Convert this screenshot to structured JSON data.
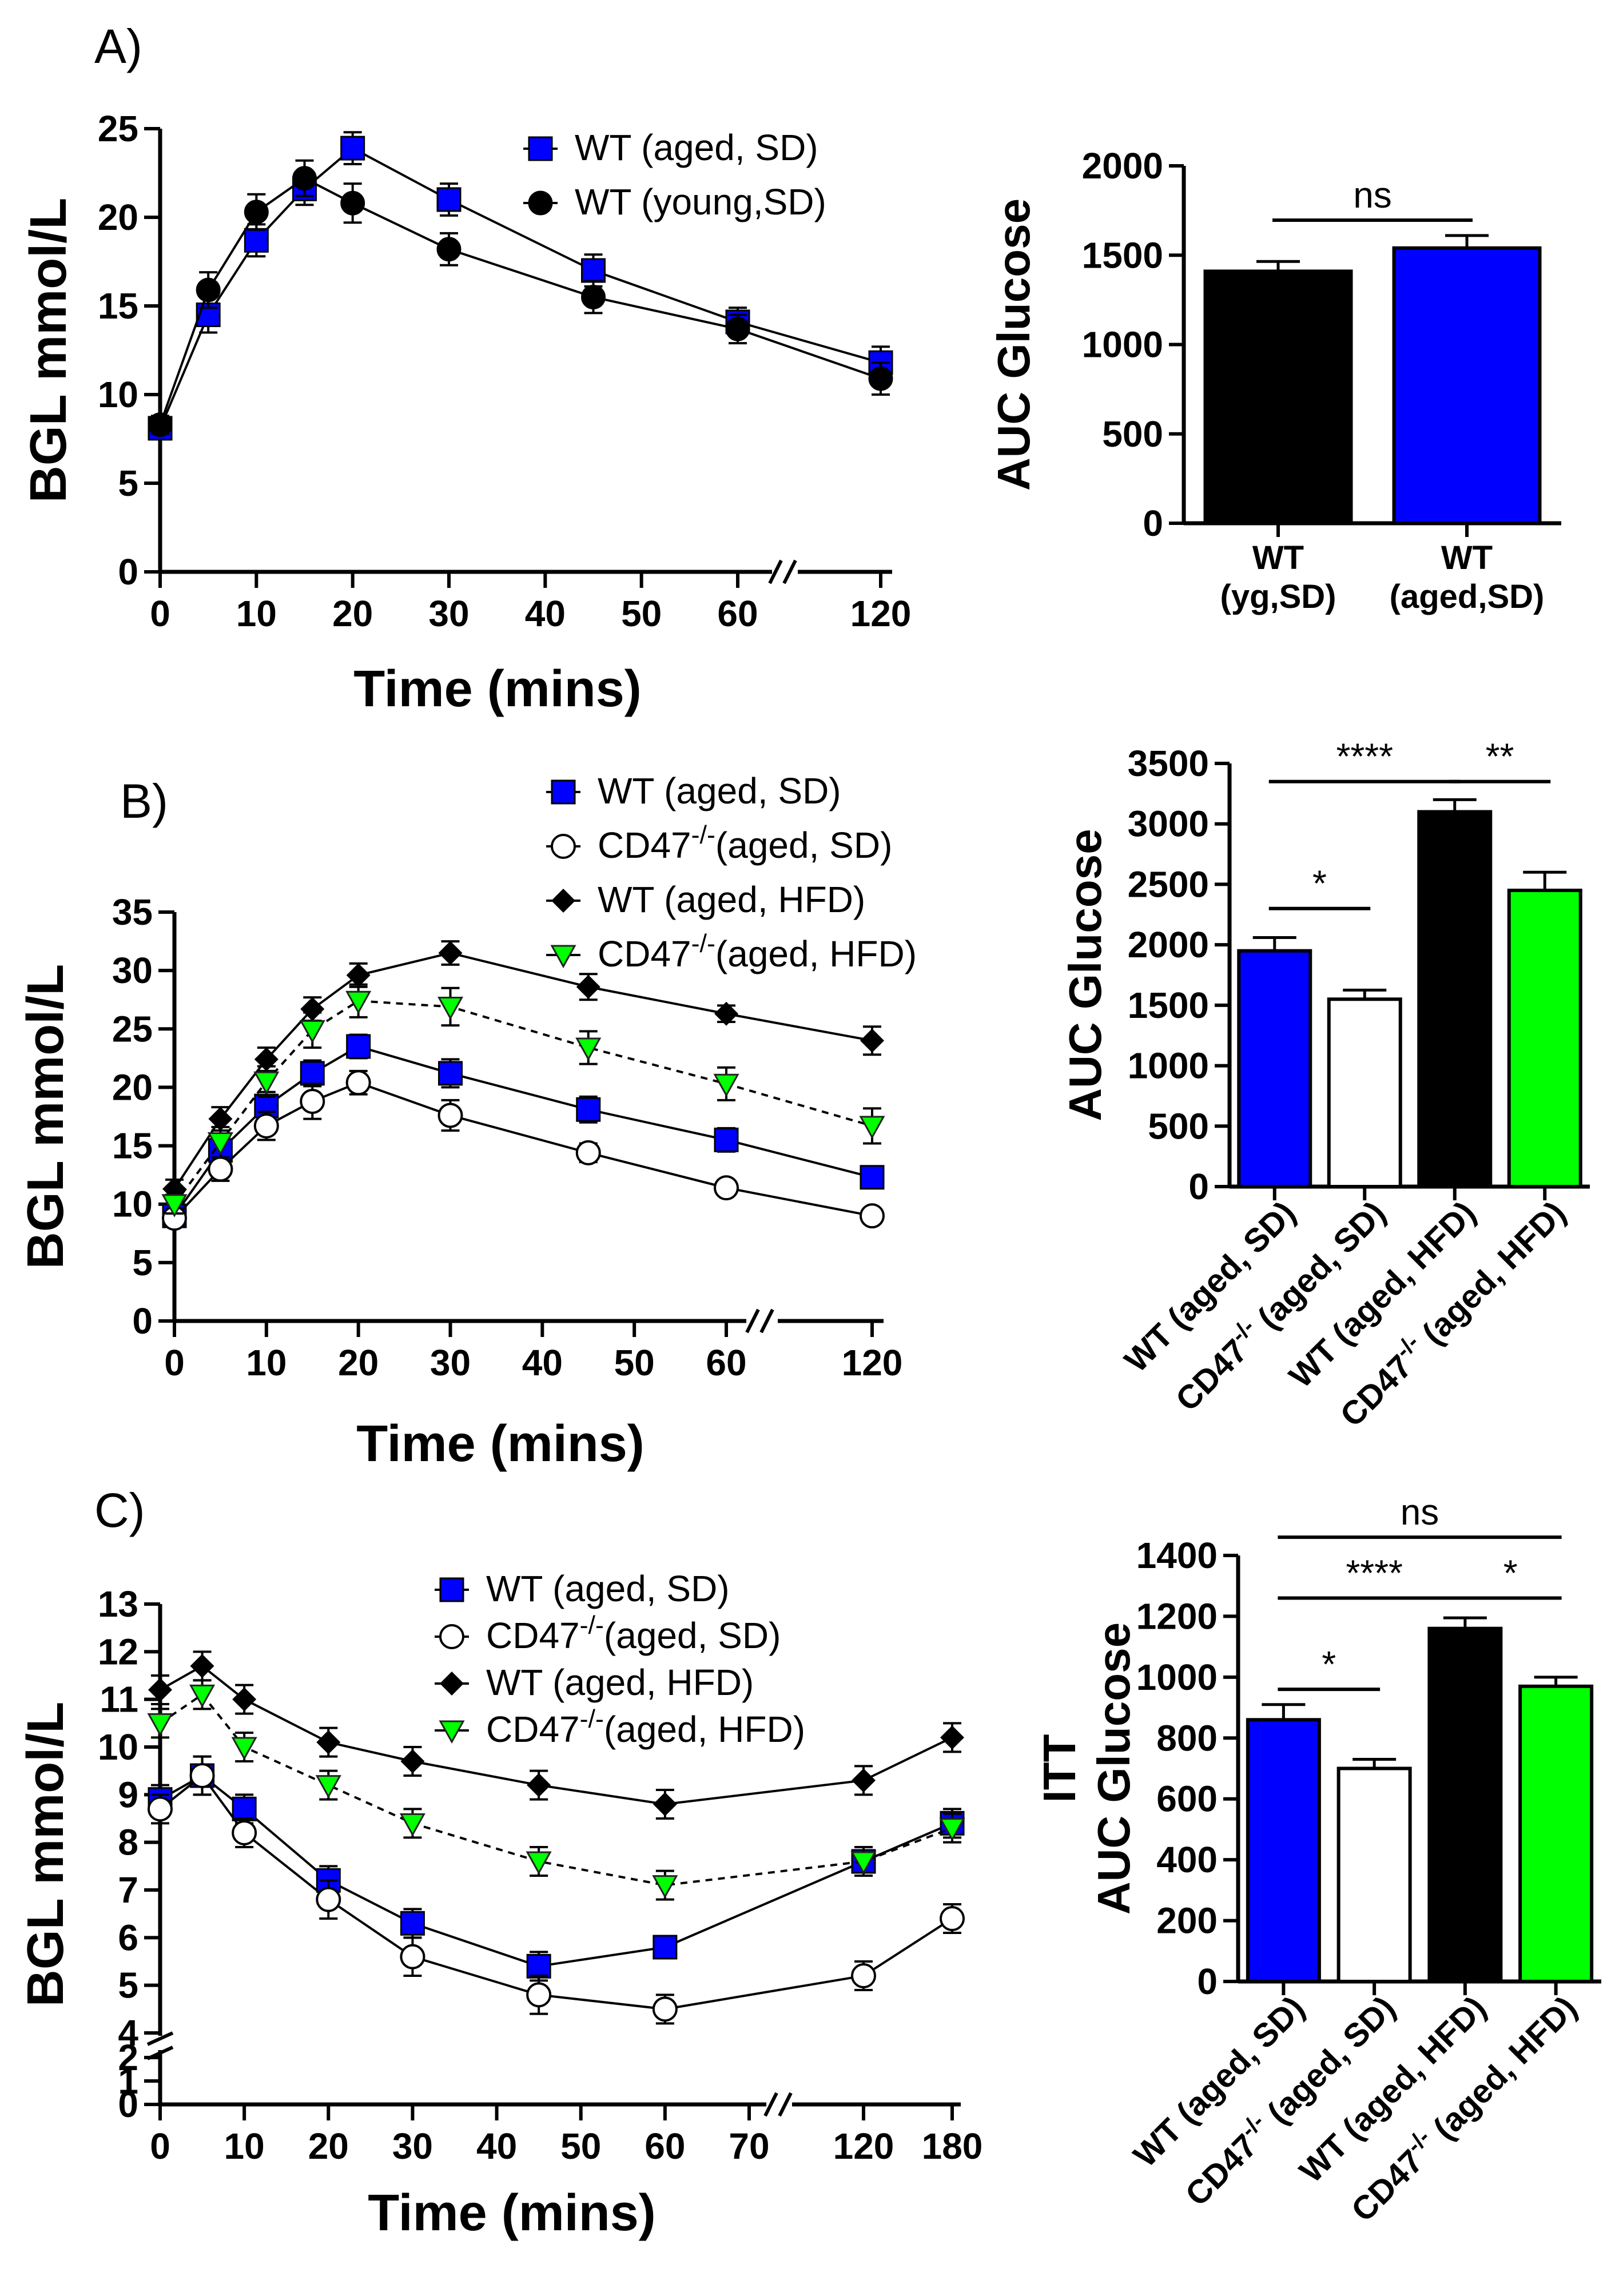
{
  "colors": {
    "blue": "#0000ff",
    "black": "#000000",
    "white": "#ffffff",
    "green": "#00ff00"
  },
  "panels": {
    "A": "A)",
    "B": "B)",
    "C": "C)"
  },
  "chart_data": [
    {
      "id": "A_line",
      "type": "line",
      "xlabel": "Time (mins)",
      "ylabel": "BGL mmol/L",
      "ylim": [
        0,
        25
      ],
      "yticks": [
        0,
        5,
        10,
        15,
        20,
        25
      ],
      "x": [
        0,
        5,
        10,
        15,
        20,
        30,
        45,
        60,
        120
      ],
      "xticks": [
        0,
        10,
        20,
        30,
        40,
        50,
        60,
        120
      ],
      "axis_break": "between 60 and 120",
      "series": [
        {
          "name": "WT (aged, SD)",
          "marker": "square",
          "color": "#0000ff",
          "line": "solid",
          "values": [
            8.1,
            14.5,
            18.7,
            21.6,
            23.9,
            21.0,
            17.0,
            14.1,
            11.8
          ],
          "err": [
            0.5,
            1.0,
            0.9,
            0.9,
            0.9,
            0.9,
            0.9,
            0.8,
            0.9
          ]
        },
        {
          "name": "WT (young,SD)",
          "marker": "circle",
          "color": "#000000",
          "line": "solid",
          "values": [
            8.3,
            15.9,
            20.3,
            22.2,
            20.8,
            18.2,
            15.5,
            13.7,
            10.9
          ],
          "err": [
            0.5,
            1.0,
            1.0,
            1.0,
            1.1,
            0.9,
            0.9,
            0.8,
            0.9
          ]
        }
      ]
    },
    {
      "id": "A_bar",
      "type": "bar",
      "ylabel": "AUC Glucose",
      "ylim": [
        0,
        2000
      ],
      "yticks": [
        0,
        500,
        1000,
        1500,
        2000
      ],
      "categories": [
        [
          "WT",
          "(yg,SD)"
        ],
        [
          "WT",
          "(aged,SD)"
        ]
      ],
      "values": [
        1410,
        1540
      ],
      "err": [
        55,
        70
      ],
      "colors": [
        "#000000",
        "#0000ff"
      ],
      "significance": [
        {
          "from": 0,
          "to": 1,
          "label": "ns"
        }
      ]
    },
    {
      "id": "B_line",
      "type": "line",
      "xlabel": "Time (mins)",
      "ylabel": "BGL mmol/L",
      "ylim": [
        0,
        35
      ],
      "yticks": [
        0,
        5,
        10,
        15,
        20,
        25,
        30,
        35
      ],
      "x": [
        0,
        5,
        10,
        15,
        20,
        30,
        45,
        60,
        120
      ],
      "xticks": [
        0,
        10,
        20,
        30,
        40,
        50,
        60,
        120
      ],
      "axis_break": "between 60 and 120",
      "series": [
        {
          "name": "WT (aged, SD)",
          "marker": "square",
          "color": "#0000ff",
          "line": "solid",
          "values": [
            9.0,
            14.6,
            18.4,
            21.2,
            23.5,
            21.2,
            18.1,
            15.5,
            12.3
          ],
          "err": [
            0.8,
            1.1,
            1.2,
            1.1,
            1.0,
            1.2,
            1.1,
            1.0,
            0.9
          ]
        },
        {
          "name": "CD47",
          "marker": "circle-open",
          "color": "#000000",
          "line": "solid",
          "values": [
            8.8,
            13.0,
            16.7,
            18.8,
            20.4,
            17.6,
            14.4,
            11.4,
            9.0
          ],
          "err": [
            0.7,
            1.0,
            1.2,
            1.5,
            1.0,
            1.3,
            0.8,
            0.6,
            0.6
          ]
        },
        {
          "name": "WT (aged, HFD)",
          "marker": "diamond",
          "color": "#000000",
          "line": "solid",
          "values": [
            11.3,
            17.3,
            22.4,
            26.7,
            29.6,
            31.5,
            28.6,
            26.3,
            24.0
          ],
          "err": [
            0.8,
            1.0,
            1.0,
            1.0,
            1.0,
            1.0,
            1.1,
            0.7,
            1.2
          ]
        },
        {
          "name": "CD47",
          "marker": "triangle-down",
          "color": "#00ff00",
          "line": "dashed",
          "values": [
            10.0,
            15.3,
            20.5,
            24.9,
            27.4,
            26.9,
            23.4,
            20.3,
            16.7
          ],
          "err": [
            0.8,
            1.3,
            1.3,
            1.5,
            1.4,
            1.6,
            1.4,
            1.4,
            1.5
          ]
        }
      ],
      "legend": [
        {
          "prefix": "WT (aged, SD)",
          "sup": "",
          "suffix": ""
        },
        {
          "prefix": "CD47",
          "sup": "-/-",
          "suffix": "(aged, SD)"
        },
        {
          "prefix": "WT (aged, HFD)",
          "sup": "",
          "suffix": ""
        },
        {
          "prefix": "CD47",
          "sup": "-/-",
          "suffix": "(aged, HFD)"
        }
      ]
    },
    {
      "id": "B_bar",
      "type": "bar",
      "ylabel": "AUC Glucose",
      "ylim": [
        0,
        3500
      ],
      "yticks": [
        0,
        500,
        1000,
        1500,
        2000,
        2500,
        3000,
        3500
      ],
      "categories": [
        {
          "prefix": "WT (aged, SD)",
          "sup": "",
          "suffix": ""
        },
        {
          "prefix": "CD47",
          "sup": "-/-",
          "suffix": " (aged, SD)"
        },
        {
          "prefix": "WT (aged, HFD)",
          "sup": "",
          "suffix": ""
        },
        {
          "prefix": "CD47",
          "sup": "-/-",
          "suffix": " (aged, HFD)"
        }
      ],
      "values": [
        1950,
        1550,
        3100,
        2450
      ],
      "err": [
        110,
        75,
        100,
        150
      ],
      "colors": [
        "#0000ff",
        "#ffffff",
        "#000000",
        "#00ff00"
      ],
      "significance": [
        {
          "from": 0,
          "to": 1,
          "label": "*",
          "level": 2300
        },
        {
          "from": 0,
          "to": 2,
          "label": "****",
          "level": 3350
        },
        {
          "from": 2,
          "to": 3,
          "label": "**",
          "level": 3350
        }
      ]
    },
    {
      "id": "C_line",
      "type": "line",
      "xlabel": "Time (mins)",
      "ylabel": "BGL mmol/L",
      "ylim": [
        0,
        13
      ],
      "yticks": [
        0,
        1,
        2,
        4,
        5,
        6,
        7,
        8,
        9,
        10,
        11,
        12,
        13
      ],
      "y_axis_break": "between 2 and 4",
      "x": [
        0,
        5,
        10,
        20,
        30,
        45,
        60,
        120,
        180
      ],
      "xticks": [
        0,
        10,
        20,
        30,
        40,
        50,
        60,
        70,
        120,
        180
      ],
      "axis_break": "between 70 and 120",
      "series": [
        {
          "name": "WT (aged, SD)",
          "marker": "square",
          "color": "#0000ff",
          "line": "solid",
          "values": [
            8.9,
            9.4,
            8.7,
            7.2,
            6.3,
            5.4,
            5.8,
            7.6,
            8.4
          ],
          "err": [
            0.3,
            0.4,
            0.3,
            0.3,
            0.3,
            0.3,
            0.2,
            0.3,
            0.3
          ],
          "segments": [
            [
              0,
              6
            ],
            [
              6,
              8
            ]
          ]
        },
        {
          "name": "CD47",
          "marker": "circle-open",
          "color": "#000000",
          "line": "solid",
          "values": [
            8.7,
            9.4,
            8.2,
            6.8,
            5.6,
            4.8,
            4.5,
            5.2,
            6.4
          ],
          "err": [
            0.3,
            0.4,
            0.3,
            0.4,
            0.4,
            0.4,
            0.3,
            0.3,
            0.3
          ]
        },
        {
          "name": "WT (aged, HFD)",
          "marker": "diamond",
          "color": "#000000",
          "line": "solid",
          "values": [
            11.2,
            11.7,
            11.0,
            10.1,
            9.7,
            9.2,
            8.8,
            9.3,
            10.2
          ],
          "err": [
            0.3,
            0.3,
            0.3,
            0.3,
            0.3,
            0.3,
            0.3,
            0.3,
            0.3
          ]
        },
        {
          "name": "CD47",
          "marker": "triangle-down",
          "color": "#00ff00",
          "line": "dashed",
          "values": [
            10.5,
            11.1,
            10.0,
            9.2,
            8.4,
            7.6,
            7.1,
            7.6,
            8.3
          ],
          "err": [
            0.3,
            0.3,
            0.3,
            0.3,
            0.3,
            0.3,
            0.3,
            0.3,
            0.3
          ]
        }
      ],
      "legend": [
        {
          "prefix": "WT (aged, SD)",
          "sup": "",
          "suffix": ""
        },
        {
          "prefix": "CD47",
          "sup": "-/-",
          "suffix": "(aged, SD)"
        },
        {
          "prefix": "WT (aged, HFD)",
          "sup": "",
          "suffix": ""
        },
        {
          "prefix": "CD47",
          "sup": "-/-",
          "suffix": "(aged, HFD)"
        }
      ]
    },
    {
      "id": "C_bar",
      "type": "bar",
      "ylabel": "AUC Glucose",
      "ylabel_top": "ITT",
      "ylim": [
        0,
        1400
      ],
      "yticks": [
        0,
        200,
        400,
        600,
        800,
        1000,
        1200,
        1400
      ],
      "categories": [
        {
          "prefix": "WT (aged, SD)",
          "sup": "",
          "suffix": ""
        },
        {
          "prefix": "CD47",
          "sup": "-/-",
          "suffix": " (aged, SD)"
        },
        {
          "prefix": "WT (aged, HFD)",
          "sup": "",
          "suffix": ""
        },
        {
          "prefix": "CD47",
          "sup": "-/-",
          "suffix": " (aged, HFD)"
        }
      ],
      "values": [
        860,
        700,
        1160,
        970
      ],
      "err": [
        50,
        30,
        35,
        30
      ],
      "colors": [
        "#0000ff",
        "#ffffff",
        "#000000",
        "#00ff00"
      ],
      "significance": [
        {
          "from": 0,
          "to": 1,
          "label": "*",
          "level": 960
        },
        {
          "from": 0,
          "to": 2,
          "label": "****",
          "level": 1260
        },
        {
          "from": 2,
          "to": 3,
          "label": "*",
          "level": 1260
        },
        {
          "from": 0,
          "to": 3,
          "label": "ns",
          "level": 1460
        }
      ]
    }
  ]
}
